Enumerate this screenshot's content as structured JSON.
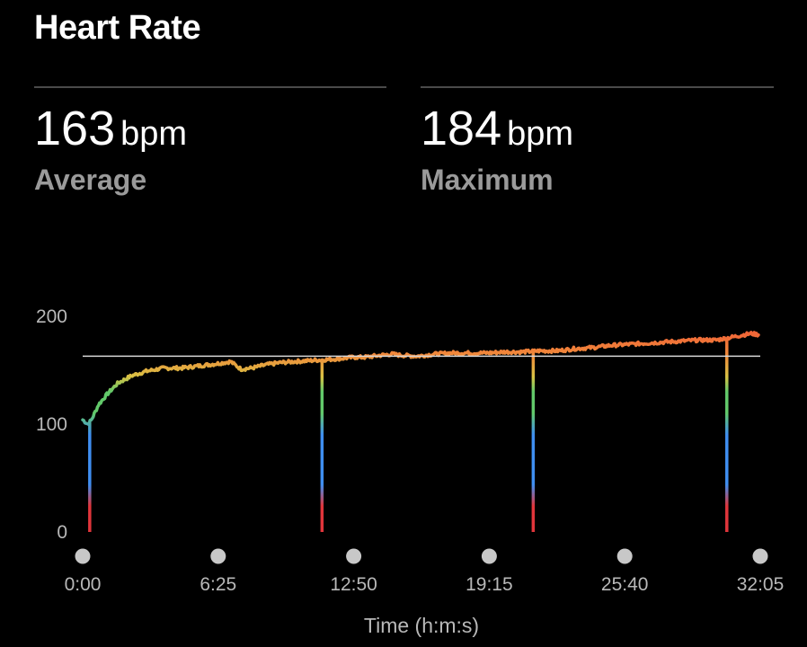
{
  "header": {
    "title": "Heart Rate"
  },
  "stats": {
    "average": {
      "value": "163",
      "unit": "bpm",
      "label": "Average"
    },
    "maximum": {
      "value": "184",
      "unit": "bpm",
      "label": "Maximum"
    }
  },
  "colors": {
    "background": "#000000",
    "zone_low": "#e0353b",
    "zone_blue": "#3f8ef0",
    "zone_green": "#62c96a",
    "zone_yellow": "#d9c244",
    "zone_orange": "#f08a3a",
    "zone_red": "#f04a35",
    "average_line": "#d8d8d8"
  },
  "chart_data": {
    "type": "line",
    "xlabel": "Time (h:m:s)",
    "ylabel": "",
    "ylim": [
      0,
      200
    ],
    "xlim_seconds": [
      0,
      1925
    ],
    "y_ticks": [
      "200",
      "100",
      "0"
    ],
    "x_ticks": [
      "0:00",
      "6:25",
      "12:50",
      "19:15",
      "25:40",
      "32:05"
    ],
    "average_line": 163,
    "grid": false,
    "legend": "none",
    "series": [
      {
        "points": [
          [
            0,
            104
          ],
          [
            15,
            100
          ],
          [
            25,
            104
          ],
          [
            45,
            118
          ],
          [
            70,
            128
          ],
          [
            100,
            138
          ],
          [
            140,
            145
          ],
          [
            180,
            149
          ],
          [
            230,
            152
          ],
          [
            280,
            152
          ],
          [
            330,
            154
          ],
          [
            380,
            156
          ],
          [
            420,
            158
          ],
          [
            450,
            151
          ],
          [
            480,
            152
          ],
          [
            520,
            155
          ],
          [
            560,
            157
          ],
          [
            600,
            158
          ],
          [
            650,
            159
          ],
          [
            700,
            160
          ],
          [
            740,
            161
          ],
          [
            770,
            162
          ],
          [
            800,
            162
          ],
          [
            850,
            164
          ],
          [
            880,
            165
          ],
          [
            900,
            164
          ],
          [
            950,
            163
          ],
          [
            1000,
            165
          ],
          [
            1050,
            166
          ],
          [
            1100,
            166
          ],
          [
            1150,
            166
          ],
          [
            1200,
            167
          ],
          [
            1250,
            167
          ],
          [
            1300,
            168
          ],
          [
            1350,
            168
          ],
          [
            1400,
            170
          ],
          [
            1450,
            171
          ],
          [
            1500,
            173
          ],
          [
            1550,
            174
          ],
          [
            1600,
            175
          ],
          [
            1650,
            176
          ],
          [
            1700,
            177
          ],
          [
            1750,
            178
          ],
          [
            1800,
            178
          ],
          [
            1850,
            181
          ],
          [
            1880,
            183
          ],
          [
            1900,
            184
          ],
          [
            1920,
            183
          ]
        ]
      }
    ],
    "pauses_seconds": [
      20,
      680,
      1280,
      1830
    ]
  }
}
